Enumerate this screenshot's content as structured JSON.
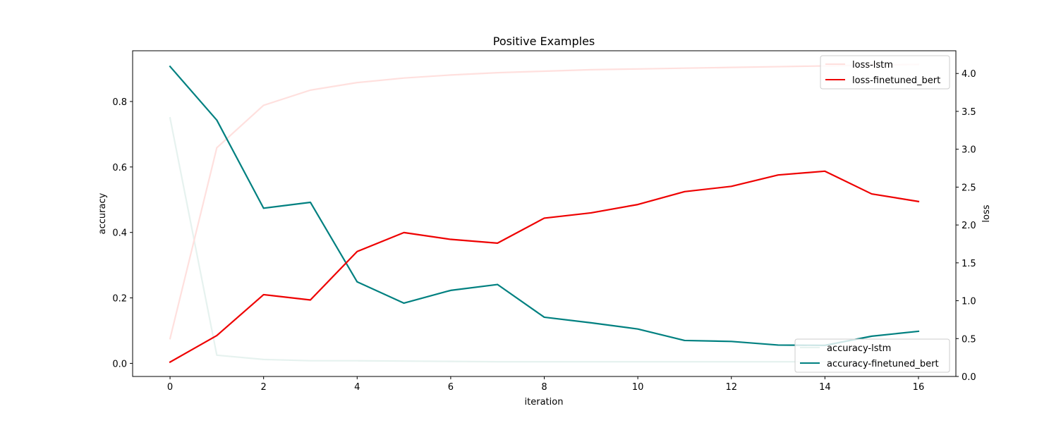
{
  "chart_data": {
    "type": "line",
    "title": "Positive Examples",
    "xlabel": "iteration",
    "ylabel": "accuracy",
    "ylabel_right": "loss",
    "xlim": [
      -0.8,
      16.8
    ],
    "ylim": [
      -0.04,
      0.955
    ],
    "ylim_right": [
      0.0,
      4.3
    ],
    "x_ticks": [
      0,
      2,
      4,
      6,
      8,
      10,
      12,
      14,
      16
    ],
    "y_ticks": [
      0.0,
      0.2,
      0.4,
      0.6,
      0.8
    ],
    "y_ticks_right": [
      0.0,
      0.5,
      1.0,
      1.5,
      2.0,
      2.5,
      3.0,
      3.5,
      4.0
    ],
    "x": [
      0,
      1,
      2,
      3,
      4,
      5,
      6,
      7,
      8,
      9,
      10,
      11,
      12,
      13,
      14,
      15,
      16
    ],
    "grid": false,
    "legend_loss": {
      "placement": "top-right",
      "entries": [
        "loss-lstm",
        "loss-finetuned_bert"
      ]
    },
    "legend_accuracy": {
      "placement": "bottom-right",
      "entries": [
        "accuracy-lstm",
        "accuracy-finetuned_bert"
      ]
    },
    "series": [
      {
        "name": "accuracy-lstm",
        "axis": "left",
        "color": "#e6f2ef",
        "values": [
          0.75,
          0.025,
          0.012,
          0.008,
          0.008,
          0.007,
          0.006,
          0.005,
          0.005,
          0.005,
          0.005,
          0.005,
          0.005,
          0.005,
          0.005,
          0.005,
          0.005
        ]
      },
      {
        "name": "accuracy-finetuned_bert",
        "axis": "left",
        "color": "#008080",
        "values": [
          0.907,
          0.743,
          0.474,
          0.492,
          0.249,
          0.184,
          0.223,
          0.241,
          0.141,
          0.124,
          0.105,
          0.07,
          0.067,
          0.056,
          0.055,
          0.083,
          0.098
        ]
      },
      {
        "name": "loss-lstm",
        "axis": "right",
        "color": "#ffe0de",
        "values": [
          0.5,
          3.02,
          3.58,
          3.78,
          3.88,
          3.94,
          3.98,
          4.01,
          4.03,
          4.05,
          4.06,
          4.07,
          4.08,
          4.09,
          4.1,
          4.11,
          4.12
        ]
      },
      {
        "name": "loss-finetuned_bert",
        "axis": "right",
        "color": "#ee0000",
        "values": [
          0.19,
          0.54,
          1.08,
          1.01,
          1.65,
          1.9,
          1.81,
          1.76,
          2.09,
          2.16,
          2.27,
          2.44,
          2.51,
          2.66,
          2.71,
          2.41,
          2.31
        ]
      }
    ]
  }
}
